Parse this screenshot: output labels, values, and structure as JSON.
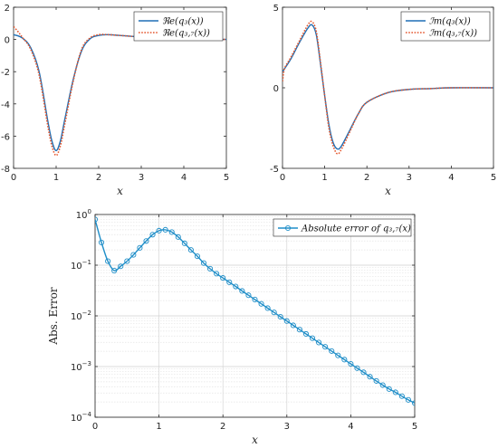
{
  "chart_data": [
    {
      "type": "line",
      "xlabel": "x",
      "ylabel": "",
      "xlim": [
        0,
        5
      ],
      "ylim": [
        -8,
        2
      ],
      "xticks": [
        0,
        1,
        2,
        3,
        4,
        5
      ],
      "yticks": [
        -8,
        -6,
        -4,
        -2,
        0,
        2
      ],
      "legend_position": "top-right",
      "grid": false,
      "series": [
        {
          "name": "ℜe(q₃(x))",
          "color": "#1f6fb5",
          "style": "solid",
          "x": [
            0,
            0.2,
            0.4,
            0.6,
            0.8,
            0.9,
            1.0,
            1.1,
            1.2,
            1.4,
            1.6,
            1.8,
            2.0,
            2.2,
            2.5,
            3.0,
            3.5,
            4.0,
            5.0
          ],
          "values": [
            0.3,
            0.1,
            -0.5,
            -2.0,
            -5.0,
            -6.3,
            -6.9,
            -6.3,
            -5.0,
            -2.5,
            -0.7,
            0.05,
            0.25,
            0.3,
            0.25,
            0.15,
            0.1,
            0.05,
            0.0
          ]
        },
        {
          "name": "ℜe(q₃,₇(x))",
          "color": "#e4572e",
          "style": "dotted",
          "x": [
            0,
            0.1,
            0.2,
            0.4,
            0.6,
            0.8,
            0.9,
            1.0,
            1.1,
            1.2,
            1.4,
            1.6,
            1.8,
            2.0,
            2.2,
            2.5,
            3.0,
            3.5,
            4.0,
            5.0
          ],
          "values": [
            0.8,
            0.5,
            0.15,
            -0.6,
            -2.2,
            -5.3,
            -6.6,
            -7.2,
            -6.6,
            -5.3,
            -2.6,
            -0.6,
            0.1,
            0.3,
            0.3,
            0.25,
            0.15,
            0.1,
            0.05,
            0.0
          ]
        }
      ]
    },
    {
      "type": "line",
      "xlabel": "x",
      "ylabel": "",
      "xlim": [
        0,
        5
      ],
      "ylim": [
        -5,
        5
      ],
      "xticks": [
        0,
        1,
        2,
        3,
        4,
        5
      ],
      "yticks": [
        -5,
        0,
        5
      ],
      "legend_position": "top-right",
      "grid": false,
      "series": [
        {
          "name": "ℐm(q₃(x))",
          "color": "#1f6fb5",
          "style": "solid",
          "x": [
            0,
            0.2,
            0.4,
            0.6,
            0.7,
            0.8,
            0.9,
            1.0,
            1.1,
            1.2,
            1.3,
            1.4,
            1.6,
            1.8,
            2.0,
            2.5,
            3.0,
            3.5,
            4.0,
            5.0
          ],
          "values": [
            1.0,
            1.8,
            2.8,
            3.7,
            3.9,
            3.3,
            1.5,
            -0.5,
            -2.3,
            -3.4,
            -3.8,
            -3.6,
            -2.6,
            -1.6,
            -0.9,
            -0.3,
            -0.1,
            -0.05,
            0.0,
            0.0
          ]
        },
        {
          "name": "ℐm(q₃,₇(x))",
          "color": "#e4572e",
          "style": "dotted",
          "x": [
            0,
            0.05,
            0.2,
            0.4,
            0.6,
            0.7,
            0.8,
            0.9,
            1.0,
            1.1,
            1.2,
            1.3,
            1.4,
            1.6,
            1.8,
            2.0,
            2.5,
            3.0,
            3.5,
            4.0,
            5.0
          ],
          "values": [
            0.4,
            1.2,
            1.9,
            2.9,
            3.9,
            4.1,
            3.5,
            1.6,
            -0.5,
            -2.5,
            -3.6,
            -4.1,
            -3.8,
            -2.7,
            -1.6,
            -0.9,
            -0.3,
            -0.1,
            -0.05,
            0.0,
            0.0
          ]
        }
      ]
    },
    {
      "type": "line",
      "xlabel": "x",
      "ylabel": "Abs. Error",
      "xlim": [
        0,
        5
      ],
      "ylim": [
        0.0001,
        1
      ],
      "yscale": "log",
      "xticks": [
        0,
        1,
        2,
        3,
        4,
        5
      ],
      "yticks": [
        {
          "value": 0.0001,
          "base": "10",
          "exp": "−4"
        },
        {
          "value": 0.001,
          "base": "10",
          "exp": "−3"
        },
        {
          "value": 0.01,
          "base": "10",
          "exp": "−2"
        },
        {
          "value": 0.1,
          "base": "10",
          "exp": "−1"
        },
        {
          "value": 1,
          "base": "10",
          "exp": "0"
        }
      ],
      "grid": true,
      "legend_position": "top-right",
      "series": [
        {
          "name": "Absolute error of q₃,₇(x)",
          "color": "#1f8ec8",
          "marker": "circle",
          "x": [
            0,
            0.1,
            0.2,
            0.3,
            0.4,
            0.5,
            0.6,
            0.7,
            0.8,
            0.9,
            1.0,
            1.1,
            1.2,
            1.3,
            1.4,
            1.5,
            1.6,
            1.7,
            1.8,
            1.9,
            2.0,
            2.1,
            2.2,
            2.3,
            2.4,
            2.5,
            2.6,
            2.7,
            2.8,
            2.9,
            3.0,
            3.1,
            3.2,
            3.3,
            3.4,
            3.5,
            3.6,
            3.7,
            3.8,
            3.9,
            4.0,
            4.1,
            4.2,
            4.3,
            4.4,
            4.5,
            4.6,
            4.7,
            4.8,
            4.9,
            5.0
          ],
          "values": [
            0.8,
            0.28,
            0.12,
            0.078,
            0.095,
            0.12,
            0.16,
            0.22,
            0.3,
            0.4,
            0.48,
            0.5,
            0.45,
            0.36,
            0.27,
            0.2,
            0.15,
            0.11,
            0.085,
            0.068,
            0.056,
            0.046,
            0.038,
            0.031,
            0.0255,
            0.021,
            0.0173,
            0.0142,
            0.0117,
            0.0096,
            0.0079,
            0.0065,
            0.00535,
            0.0044,
            0.00362,
            0.00298,
            0.00245,
            0.00202,
            0.00166,
            0.00137,
            0.00113,
            0.00093,
            0.00077,
            0.00063,
            0.00052,
            0.00043,
            0.00036,
            0.00031,
            0.00026,
            0.00022,
            0.00019
          ]
        }
      ]
    }
  ]
}
